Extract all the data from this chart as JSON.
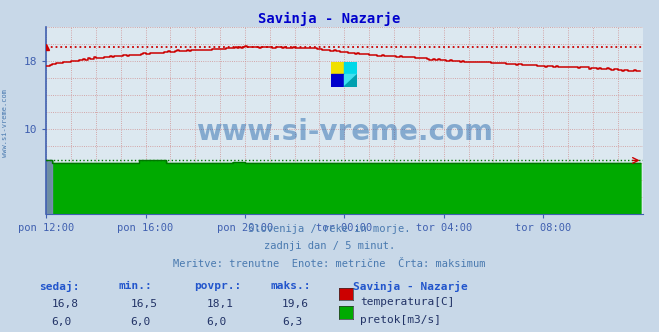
{
  "title": "Savinja - Nazarje",
  "background_color": "#c8d8e8",
  "plot_bg_color": "#dce8f0",
  "grid_color_red": "#d09090",
  "grid_color_blue": "#8080c0",
  "ylabel_left": "",
  "xlabel": "",
  "xlim": [
    0,
    288
  ],
  "ylim": [
    0,
    22
  ],
  "yticks": [
    10,
    18
  ],
  "xtick_labels": [
    "pon 12:00",
    "pon 16:00",
    "pon 20:00",
    "tor 00:00",
    "tor 04:00",
    "tor 08:00"
  ],
  "xtick_positions": [
    0,
    48,
    96,
    144,
    192,
    240
  ],
  "temp_max_line": 19.6,
  "flow_max_line": 6.3,
  "subtitle_lines": [
    "Slovenija / reke in morje.",
    "zadnji dan / 5 minut.",
    "Meritve: trenutne  Enote: metrične  Črta: maksimum"
  ],
  "table_headers": [
    "sedaj:",
    "min.:",
    "povpr.:",
    "maks.:"
  ],
  "table_row1": [
    "16,8",
    "16,5",
    "18,1",
    "19,6"
  ],
  "table_row2": [
    "6,0",
    "6,0",
    "6,0",
    "6,3"
  ],
  "legend_label1": "temperatura[C]",
  "legend_label2": "pretok[m3/s]",
  "legend_station": "Savinja - Nazarje",
  "temp_color": "#cc0000",
  "flow_color": "#007700",
  "flow_fill_color": "#00aa00",
  "watermark_text": "www.si-vreme.com",
  "watermark_color": "#1a5fa8",
  "sidebar_text": "www.si-vreme.com",
  "sidebar_color": "#4a7ab0",
  "title_color": "#0000cc",
  "subtitle_color": "#4a7ab0",
  "header_color": "#2255cc",
  "value_color": "#223366",
  "axis_color": "#4060b0"
}
